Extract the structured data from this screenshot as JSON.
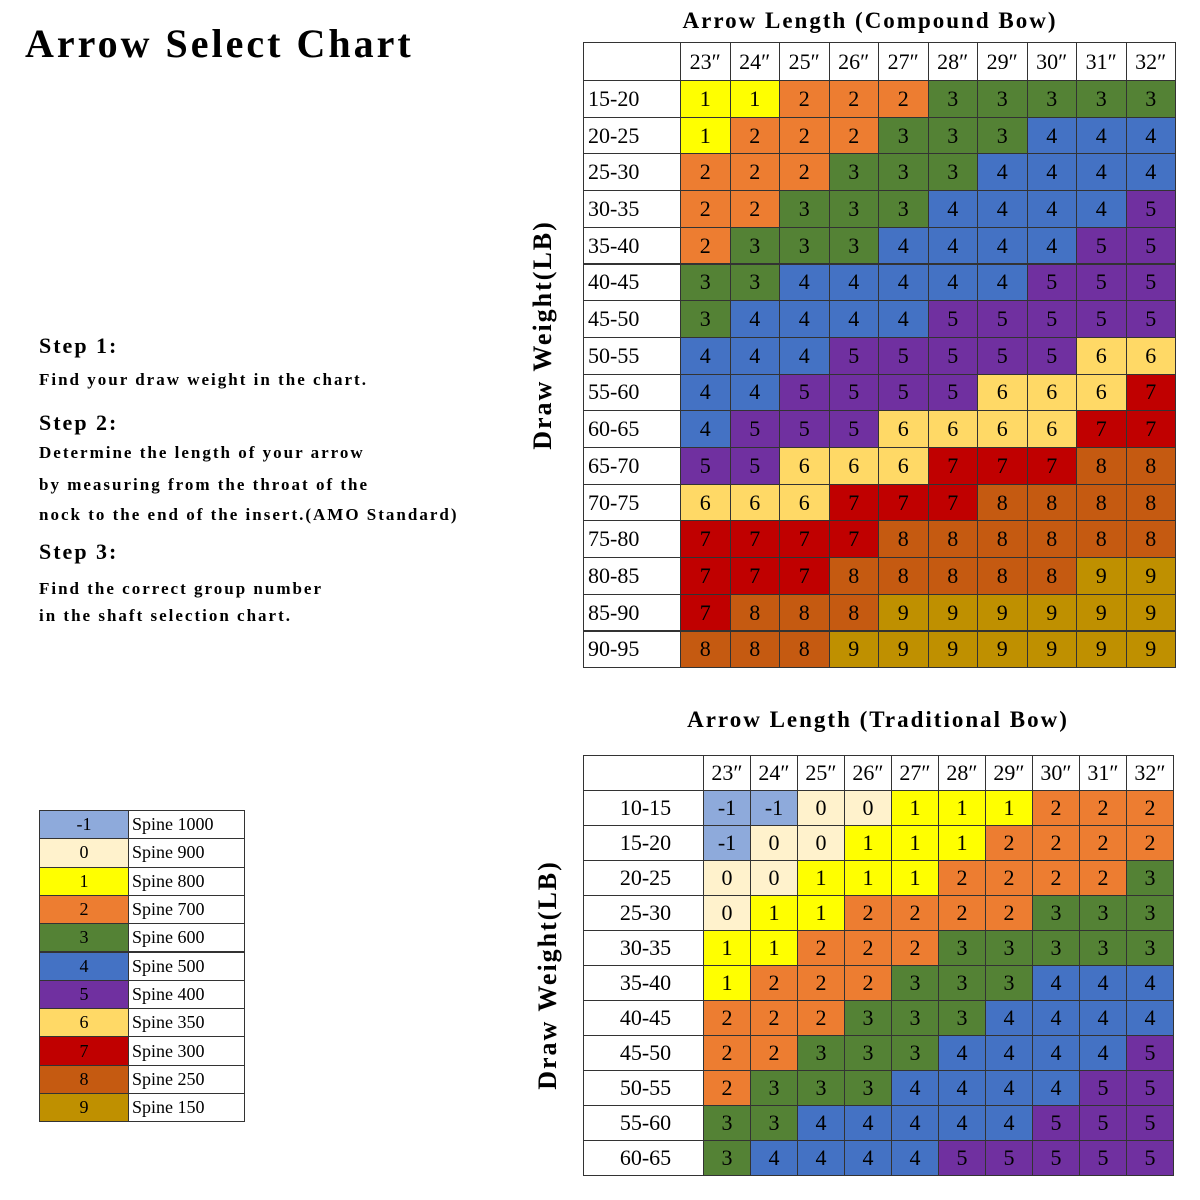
{
  "header": {
    "title": "Arrow Select Chart"
  },
  "steps": [
    {
      "heading": "Step 1:",
      "lines": [
        "Find your draw weight in the chart."
      ]
    },
    {
      "heading": "Step 2:",
      "lines": [
        "Determine the length of your arrow",
        "by measuring from the throat of the",
        "nock to the end of the insert.(AMO Standard)"
      ]
    },
    {
      "heading": "Step 3:",
      "lines": [
        "Find the correct group number",
        "in the shaft selection chart."
      ]
    }
  ],
  "legend": [
    {
      "group": "-1",
      "label": "Spine 1000",
      "color": "#8eaadb"
    },
    {
      "group": "0",
      "label": "Spine 900",
      "color": "#fff2cc"
    },
    {
      "group": "1",
      "label": "Spine 800",
      "color": "#ffff00"
    },
    {
      "group": "2",
      "label": "Spine 700",
      "color": "#ed7d31"
    },
    {
      "group": "3",
      "label": "Spine 600",
      "color": "#548235"
    },
    {
      "group": "4",
      "label": "Spine 500",
      "color": "#4472c4"
    },
    {
      "group": "5",
      "label": "Spine 400",
      "color": "#7030a0"
    },
    {
      "group": "6",
      "label": "Spine 350",
      "color": "#ffd966"
    },
    {
      "group": "7",
      "label": "Spine 300",
      "color": "#c00000"
    },
    {
      "group": "8",
      "label": "Spine 250",
      "color": "#c55a11"
    },
    {
      "group": "9",
      "label": "Spine 150",
      "color": "#bf9000"
    }
  ],
  "compound": {
    "title": "Arrow Length (Compound Bow)",
    "y_label": "Draw Weight(LB)",
    "columns": [
      "23″",
      "24″",
      "25″",
      "26″",
      "27″",
      "28″",
      "29″",
      "30″",
      "31″",
      "32″"
    ],
    "rows": [
      {
        "label": "15-20",
        "cells": [
          "1",
          "1",
          "2",
          "2",
          "2",
          "3",
          "3",
          "3",
          "3",
          "3"
        ]
      },
      {
        "label": "20-25",
        "cells": [
          "1",
          "2",
          "2",
          "2",
          "3",
          "3",
          "3",
          "4",
          "4",
          "4"
        ]
      },
      {
        "label": "25-30",
        "cells": [
          "2",
          "2",
          "2",
          "3",
          "3",
          "3",
          "4",
          "4",
          "4",
          "4"
        ]
      },
      {
        "label": "30-35",
        "cells": [
          "2",
          "2",
          "3",
          "3",
          "3",
          "4",
          "4",
          "4",
          "4",
          "5"
        ]
      },
      {
        "label": "35-40",
        "cells": [
          "2",
          "3",
          "3",
          "3",
          "4",
          "4",
          "4",
          "4",
          "5",
          "5"
        ]
      },
      {
        "label": "40-45",
        "cells": [
          "3",
          "3",
          "4",
          "4",
          "4",
          "4",
          "4",
          "5",
          "5",
          "5"
        ]
      },
      {
        "label": "45-50",
        "cells": [
          "3",
          "4",
          "4",
          "4",
          "4",
          "5",
          "5",
          "5",
          "5",
          "5"
        ]
      },
      {
        "label": "50-55",
        "cells": [
          "4",
          "4",
          "4",
          "5",
          "5",
          "5",
          "5",
          "5",
          "6",
          "6"
        ]
      },
      {
        "label": "55-60",
        "cells": [
          "4",
          "4",
          "5",
          "5",
          "5",
          "5",
          "6",
          "6",
          "6",
          "7"
        ]
      },
      {
        "label": "60-65",
        "cells": [
          "4",
          "5",
          "5",
          "5",
          "6",
          "6",
          "6",
          "6",
          "7",
          "7"
        ]
      },
      {
        "label": "65-70",
        "cells": [
          "5",
          "5",
          "6",
          "6",
          "6",
          "7",
          "7",
          "7",
          "8",
          "8"
        ]
      },
      {
        "label": "70-75",
        "cells": [
          "6",
          "6",
          "6",
          "7",
          "7",
          "7",
          "8",
          "8",
          "8",
          "8"
        ]
      },
      {
        "label": "75-80",
        "cells": [
          "7",
          "7",
          "7",
          "7",
          "8",
          "8",
          "8",
          "8",
          "8",
          "8"
        ]
      },
      {
        "label": "80-85",
        "cells": [
          "7",
          "7",
          "7",
          "8",
          "8",
          "8",
          "8",
          "8",
          "9",
          "9"
        ]
      },
      {
        "label": "85-90",
        "cells": [
          "7",
          "8",
          "8",
          "8",
          "9",
          "9",
          "9",
          "9",
          "9",
          "9"
        ]
      },
      {
        "label": "90-95",
        "cells": [
          "8",
          "8",
          "8",
          "9",
          "9",
          "9",
          "9",
          "9",
          "9",
          "9"
        ]
      }
    ]
  },
  "traditional": {
    "title": "Arrow Length  (Traditional Bow)",
    "y_label": "Draw Weight(LB)",
    "columns": [
      "23″",
      "24″",
      "25″",
      "26″",
      "27″",
      "28″",
      "29″",
      "30″",
      "31″",
      "32″"
    ],
    "rows": [
      {
        "label": "10-15",
        "cells": [
          "-1",
          "-1",
          "0",
          "0",
          "1",
          "1",
          "1",
          "2",
          "2",
          "2"
        ]
      },
      {
        "label": "15-20",
        "cells": [
          "-1",
          "0",
          "0",
          "1",
          "1",
          "1",
          "2",
          "2",
          "2",
          "2"
        ]
      },
      {
        "label": "20-25",
        "cells": [
          "0",
          "0",
          "1",
          "1",
          "1",
          "2",
          "2",
          "2",
          "2",
          "3"
        ]
      },
      {
        "label": "25-30",
        "cells": [
          "0",
          "1",
          "1",
          "2",
          "2",
          "2",
          "2",
          "3",
          "3",
          "3"
        ]
      },
      {
        "label": "30-35",
        "cells": [
          "1",
          "1",
          "2",
          "2",
          "2",
          "3",
          "3",
          "3",
          "3",
          "3"
        ]
      },
      {
        "label": "35-40",
        "cells": [
          "1",
          "2",
          "2",
          "2",
          "3",
          "3",
          "3",
          "4",
          "4",
          "4"
        ]
      },
      {
        "label": "40-45",
        "cells": [
          "2",
          "2",
          "2",
          "3",
          "3",
          "3",
          "4",
          "4",
          "4",
          "4"
        ]
      },
      {
        "label": "45-50",
        "cells": [
          "2",
          "2",
          "3",
          "3",
          "3",
          "4",
          "4",
          "4",
          "4",
          "5"
        ]
      },
      {
        "label": "50-55",
        "cells": [
          "2",
          "3",
          "3",
          "3",
          "4",
          "4",
          "4",
          "4",
          "5",
          "5"
        ]
      },
      {
        "label": "55-60",
        "cells": [
          "3",
          "3",
          "4",
          "4",
          "4",
          "4",
          "4",
          "5",
          "5",
          "5"
        ]
      },
      {
        "label": "60-65",
        "cells": [
          "3",
          "4",
          "4",
          "4",
          "4",
          "5",
          "5",
          "5",
          "5",
          "5"
        ]
      }
    ]
  }
}
